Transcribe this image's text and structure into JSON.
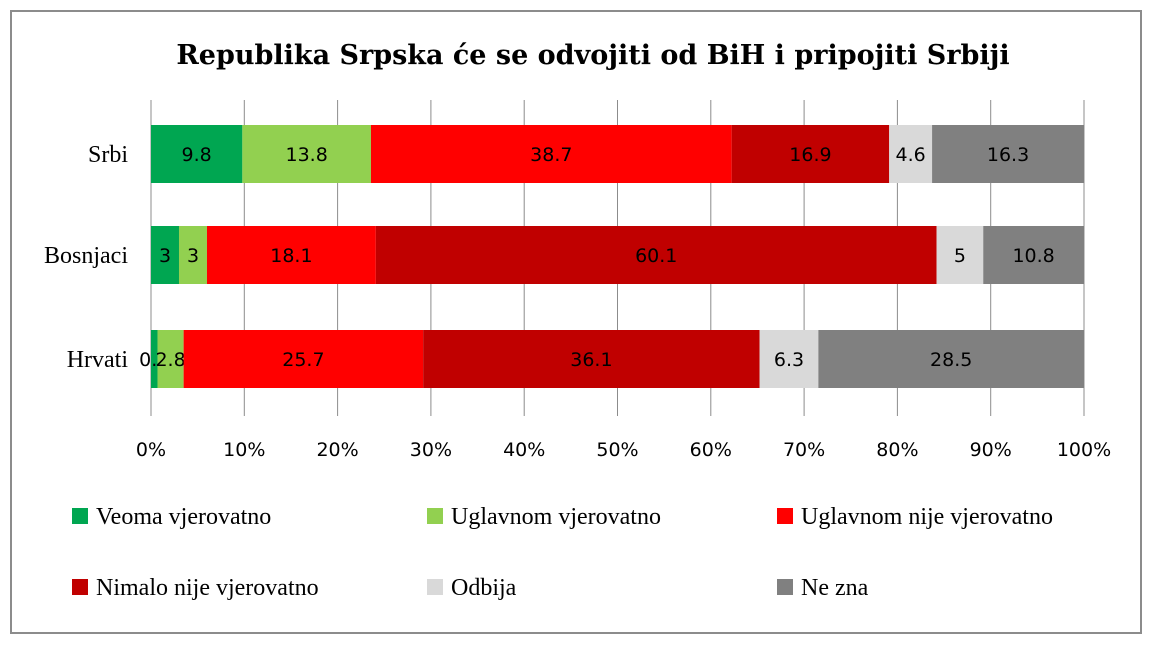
{
  "chart_data": {
    "type": "bar",
    "orientation": "horizontal",
    "stacked": "percent",
    "title": "Republika Srpska će se odvojiti od BiH i pripojiti Srbiji",
    "categories": [
      "Srbi",
      "Bosnjaci",
      "Hrvati"
    ],
    "series": [
      {
        "name": "Veoma vjerovatno",
        "color": "#00a651",
        "values": [
          9.8,
          3,
          0.7
        ]
      },
      {
        "name": "Uglavnom vjerovatno",
        "color": "#92d050",
        "values": [
          13.8,
          3,
          2.8
        ]
      },
      {
        "name": "Uglavnom nije vjerovatno",
        "color": "#ff0000",
        "values": [
          38.7,
          18.1,
          25.7
        ]
      },
      {
        "name": "Nimalo nije vjerovatno",
        "color": "#c00000",
        "values": [
          16.9,
          60.1,
          36.1
        ]
      },
      {
        "name": "Odbija",
        "color": "#d9d9d9",
        "values": [
          4.6,
          5,
          6.3
        ]
      },
      {
        "name": "Ne zna",
        "color": "#808080",
        "values": [
          16.3,
          10.8,
          28.5
        ]
      }
    ],
    "xticks": [
      "0%",
      "10%",
      "20%",
      "30%",
      "40%",
      "50%",
      "60%",
      "70%",
      "80%",
      "90%",
      "100%"
    ],
    "xlim": [
      0,
      100
    ],
    "xlabel": "",
    "ylabel": "",
    "grid": "vertical",
    "legend_position": "bottom"
  }
}
